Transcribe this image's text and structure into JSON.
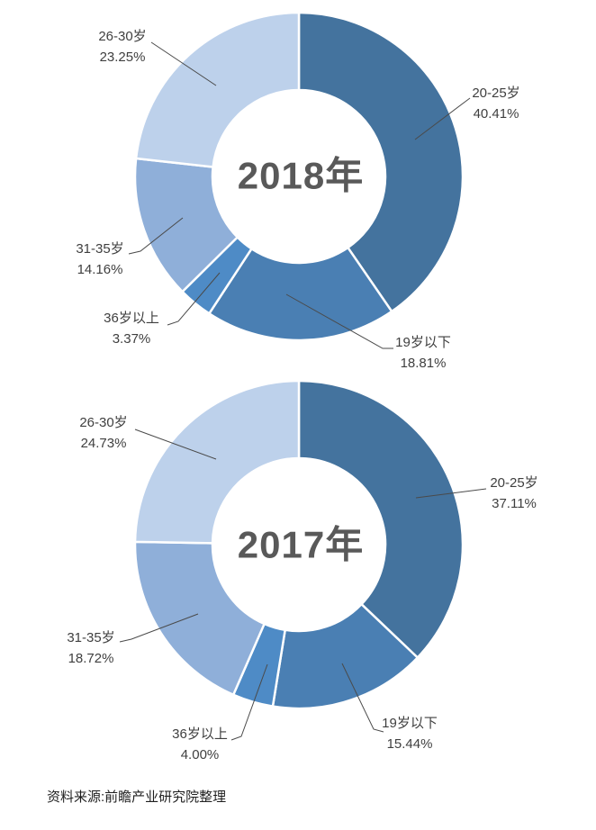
{
  "chart_data": [
    {
      "type": "pie",
      "subtype": "donut",
      "title": "2018年",
      "categories": [
        "20-25岁",
        "19岁以下",
        "36岁以上",
        "31-35岁",
        "26-30岁"
      ],
      "values": [
        40.41,
        18.81,
        3.37,
        14.16,
        23.25
      ],
      "value_labels": [
        "40.41%",
        "18.81%",
        "3.37%",
        "14.16%",
        "23.25%"
      ],
      "colors": [
        "#44739E",
        "#4A7FB3",
        "#4E8BC6",
        "#8FAFD9",
        "#BDD1EB"
      ],
      "start_angle_deg": 0,
      "direction": "clockwise",
      "hole_ratio": 0.53,
      "legend": "none",
      "label_style": "outside-with-leader-lines"
    },
    {
      "type": "pie",
      "subtype": "donut",
      "title": "2017年",
      "categories": [
        "20-25岁",
        "19岁以下",
        "36岁以上",
        "31-35岁",
        "26-30岁"
      ],
      "values": [
        37.11,
        15.44,
        4.0,
        18.72,
        24.73
      ],
      "value_labels": [
        "37.11%",
        "15.44%",
        "4.00%",
        "18.72%",
        "24.73%"
      ],
      "colors": [
        "#44739E",
        "#4A7FB3",
        "#4E8BC6",
        "#8FAFD9",
        "#BDD1EB"
      ],
      "start_angle_deg": 0,
      "direction": "clockwise",
      "hole_ratio": 0.53,
      "legend": "none",
      "label_style": "outside-with-leader-lines"
    }
  ],
  "source_note": "资料来源:前瞻产业研究院整理",
  "style": {
    "center_text_color": "#595959",
    "label_text_color": "#3F3F3F",
    "leader_line_color": "#4A4A4A",
    "slice_gap_color": "#FFFFFF",
    "background": "#FFFFFF"
  }
}
